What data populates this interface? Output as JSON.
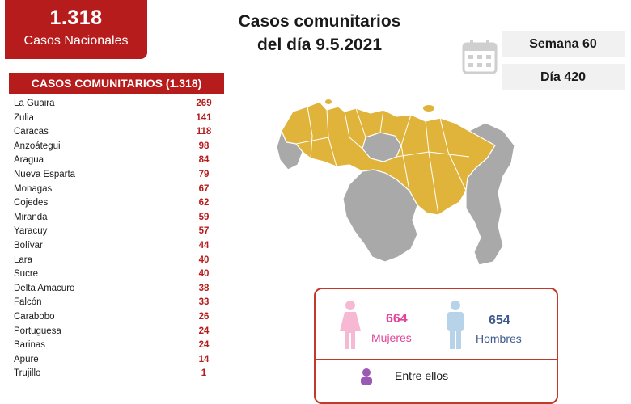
{
  "header": {
    "total": "1.318",
    "total_label": "Casos Nacionales",
    "title_line1": "Casos comunitarios",
    "title_line2": "del día 9.5.2021",
    "week": "Semana 60",
    "day": "Día 420"
  },
  "table": {
    "title": "CASOS COMUNITARIOS (1.318)",
    "rows": [
      {
        "name": "La Guaira",
        "value": "269"
      },
      {
        "name": "Zulia",
        "value": "141"
      },
      {
        "name": "Caracas",
        "value": "118"
      },
      {
        "name": "Anzoátegui",
        "value": "98"
      },
      {
        "name": "Aragua",
        "value": "84"
      },
      {
        "name": "Nueva Esparta",
        "value": "79"
      },
      {
        "name": "Monagas",
        "value": "67"
      },
      {
        "name": "Cojedes",
        "value": "62"
      },
      {
        "name": "Miranda",
        "value": "59"
      },
      {
        "name": "Yaracuy",
        "value": "57"
      },
      {
        "name": "Bolívar",
        "value": "44"
      },
      {
        "name": "Lara",
        "value": "40"
      },
      {
        "name": "Sucre",
        "value": "40"
      },
      {
        "name": "Delta Amacuro",
        "value": "38"
      },
      {
        "name": "Falcón",
        "value": "33"
      },
      {
        "name": "Carabobo",
        "value": "26"
      },
      {
        "name": "Portuguesa",
        "value": "24"
      },
      {
        "name": "Barinas",
        "value": "24"
      },
      {
        "name": "Apure",
        "value": "14"
      },
      {
        "name": "Trujillo",
        "value": "1"
      }
    ]
  },
  "gender": {
    "women_count": "664",
    "women_label": "Mujeres",
    "men_count": "654",
    "men_label": "Hombres",
    "footer_text": "Entre ellos"
  },
  "colors": {
    "brand_red": "#b71c1c",
    "women_pink": "#e0459b",
    "men_blue": "#3e5a8c",
    "map_active": "#e0b33a",
    "map_inactive": "#a9a9a9"
  },
  "icons": [
    "calendar-icon",
    "woman-icon",
    "man-icon",
    "person-icon"
  ]
}
